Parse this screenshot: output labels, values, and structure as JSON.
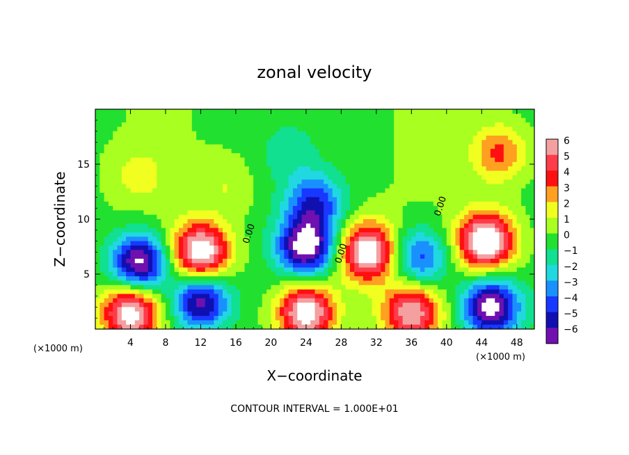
{
  "chart_data": {
    "type": "heatmap",
    "title": "zonal velocity",
    "xlabel": "X−coordinate",
    "ylabel": "Z−coordinate",
    "x_unit_left": "(×1000 m)",
    "x_unit_right": "(×1000 m)",
    "xlim": [
      0,
      50
    ],
    "ylim": [
      0,
      20
    ],
    "x_ticks": [
      4,
      8,
      12,
      16,
      20,
      24,
      28,
      32,
      36,
      40,
      44,
      48
    ],
    "x_tick_labels": [
      "4",
      "8",
      "12",
      "16",
      "20",
      "24",
      "28",
      "32",
      "36",
      "40",
      "44",
      "48"
    ],
    "y_ticks": [
      5,
      10,
      15
    ],
    "y_tick_labels": [
      "5",
      "10",
      "15"
    ],
    "colorbar": {
      "levels": [
        6,
        5,
        4,
        3,
        2,
        1,
        0,
        -1,
        -2,
        -3,
        -4,
        -5,
        -6
      ],
      "labels": [
        "6",
        "5",
        "4",
        "3",
        "2",
        "1",
        "0",
        "−1",
        "−2",
        "−3",
        "−4",
        "−5",
        "−6"
      ],
      "colors": [
        "#f4a0a0",
        "#ff3c4a",
        "#ff1010",
        "#ffa020",
        "#f0ff20",
        "#a8ff20",
        "#22e030",
        "#10e090",
        "#20d8e0",
        "#1a90ff",
        "#1838ff",
        "#1010b0",
        "#7010b0"
      ],
      "out_of_range_color": "#ffffff"
    },
    "contour_labels": [
      "0.00",
      "0.00",
      "0.00"
    ],
    "contour_interval_text": "CONTOUR INTERVAL = 1.000E+01",
    "features": [
      {
        "x": 5,
        "z": 6,
        "sign": "negative",
        "amplitude": 7.5
      },
      {
        "x": 12,
        "z": 2.5,
        "sign": "negative",
        "amplitude": 6.5
      },
      {
        "x": 24,
        "z": 7.5,
        "sign": "negative",
        "amplitude": 7.5
      },
      {
        "x": 25,
        "z": 11.5,
        "sign": "negative",
        "amplitude": 4.5
      },
      {
        "x": 37,
        "z": 6.5,
        "sign": "negative",
        "amplitude": 4.5
      },
      {
        "x": 45,
        "z": 2,
        "sign": "negative",
        "amplitude": 7.5
      },
      {
        "x": 12,
        "z": 7,
        "sign": "positive",
        "amplitude": 7.5
      },
      {
        "x": 31,
        "z": 7,
        "sign": "positive",
        "amplitude": 7.5
      },
      {
        "x": 44.5,
        "z": 8,
        "sign": "positive",
        "amplitude": 8
      },
      {
        "x": 46,
        "z": 16,
        "sign": "positive",
        "amplitude": 3.5
      },
      {
        "x": 4,
        "z": 1.5,
        "sign": "positive",
        "amplitude": 7
      },
      {
        "x": 24,
        "z": 1.5,
        "sign": "positive",
        "amplitude": 7.5
      },
      {
        "x": 36,
        "z": 1.5,
        "sign": "positive",
        "amplitude": 6
      },
      {
        "x": 5,
        "z": 14,
        "sign": "positive",
        "amplitude": 1.5
      },
      {
        "x": 15,
        "z": 13,
        "sign": "positive",
        "amplitude": 1.2
      },
      {
        "x": 22,
        "z": 16,
        "sign": "negative",
        "amplitude": 1.2
      }
    ]
  }
}
